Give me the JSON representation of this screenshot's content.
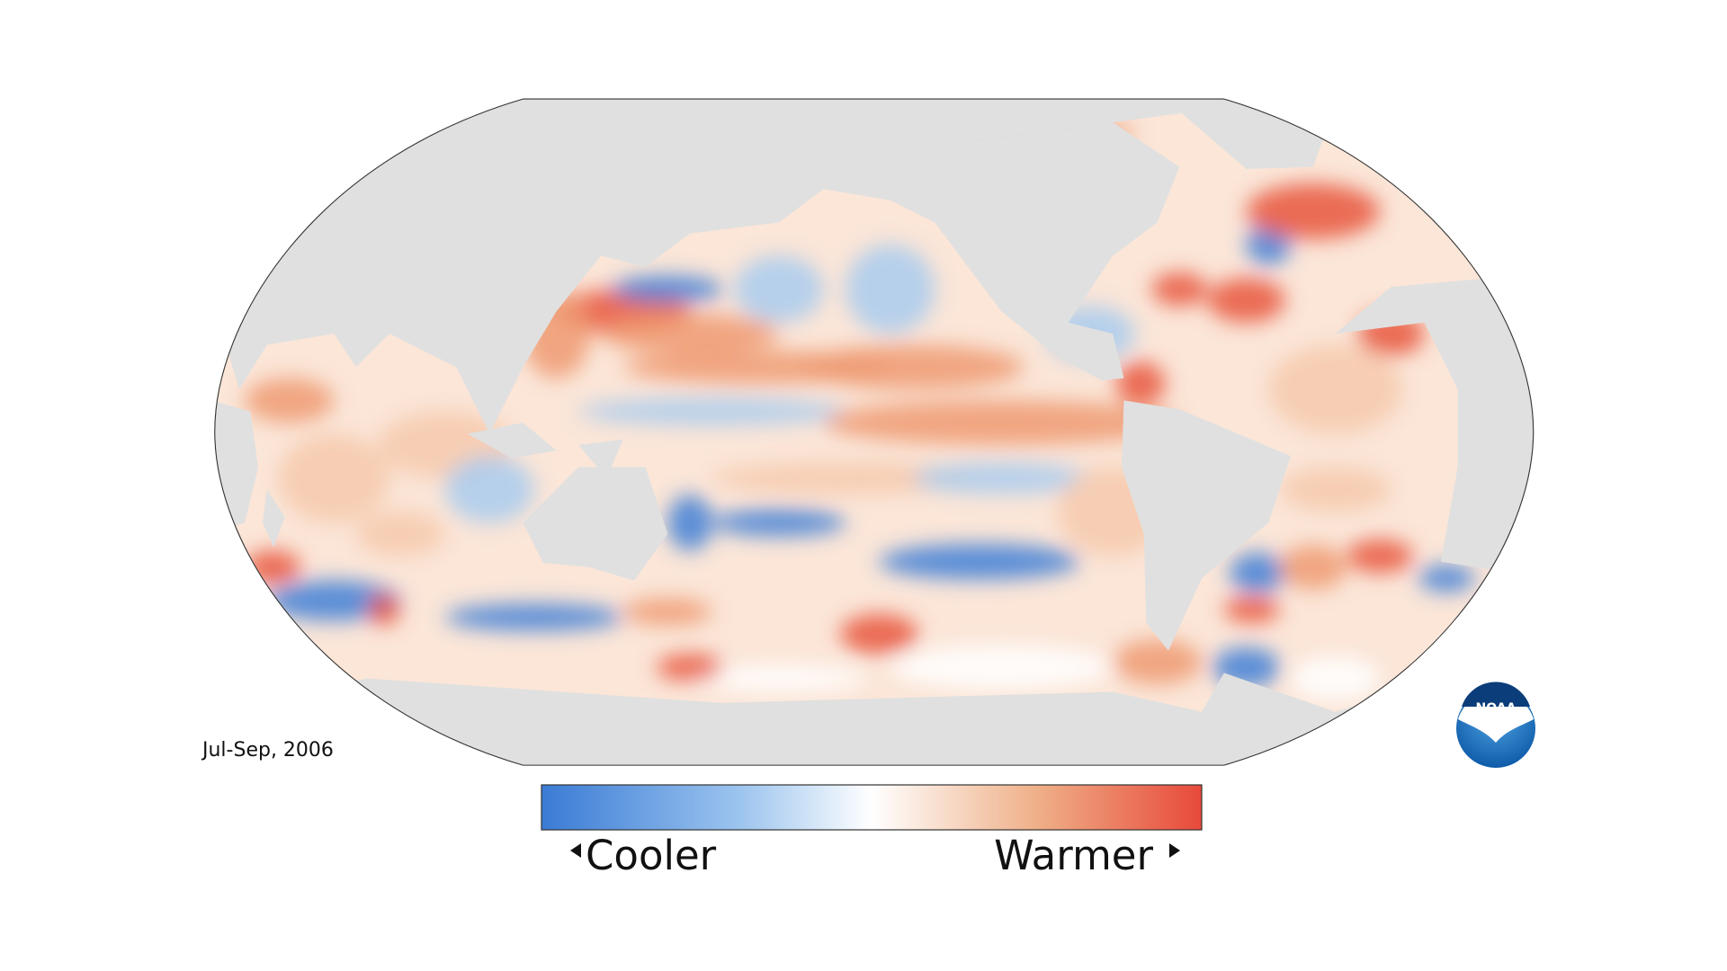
{
  "map": {
    "period": "Jul-Sep, 2006",
    "legend": {
      "low": "Cooler",
      "high": "Warmer"
    },
    "logo": "NOAA"
  }
}
